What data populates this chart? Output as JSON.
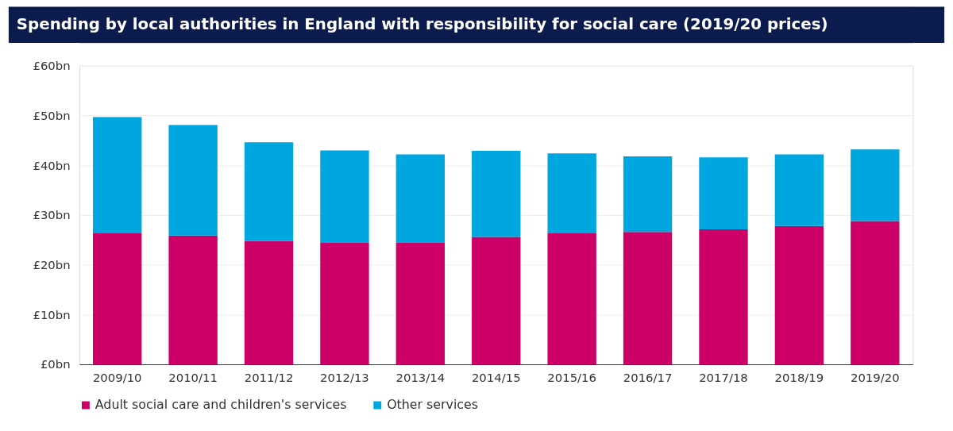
{
  "chart_data": {
    "type": "bar",
    "title": "Spending by local authorities in England with responsibility for social care (2019/20 prices)",
    "categories": [
      "2009/10",
      "2010/11",
      "2011/12",
      "2012/13",
      "2013/14",
      "2014/15",
      "2015/16",
      "2016/17",
      "2017/18",
      "2018/19",
      "2019/20"
    ],
    "stacked": true,
    "series": [
      {
        "name": "Adult social care and children's services",
        "color": "#cc0066",
        "values": [
          26.3,
          25.9,
          24.8,
          24.4,
          24.4,
          25.6,
          26.3,
          26.6,
          27.1,
          27.8,
          28.8
        ]
      },
      {
        "name": "Other services",
        "color": "#00a6e0",
        "values": [
          23.4,
          22.2,
          19.8,
          18.6,
          17.8,
          17.3,
          16.1,
          15.2,
          14.5,
          14.4,
          14.4
        ]
      }
    ],
    "ylim": [
      0,
      60
    ],
    "yticks": [
      {
        "value": 0,
        "label": "£0bn"
      },
      {
        "value": 10,
        "label": "£10bn"
      },
      {
        "value": 20,
        "label": "£20bn"
      },
      {
        "value": 30,
        "label": "£30bn"
      },
      {
        "value": 40,
        "label": "£40bn"
      },
      {
        "value": 50,
        "label": "£50bn"
      },
      {
        "value": 60,
        "label": "£60bn"
      }
    ],
    "grid": "y",
    "legend": "bottom"
  }
}
